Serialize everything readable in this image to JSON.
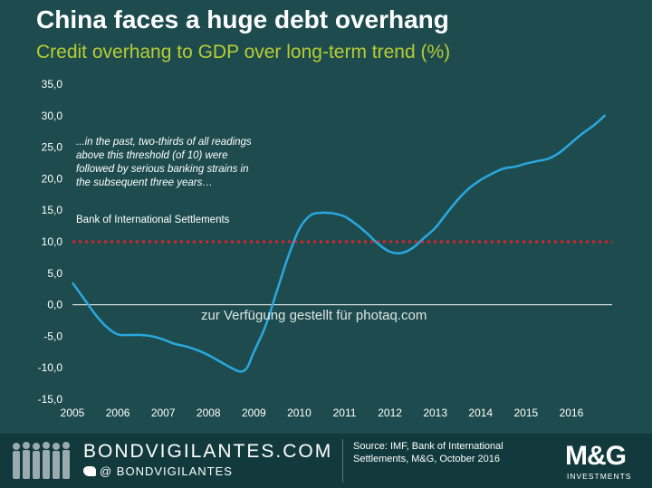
{
  "header": {
    "title": "China faces a huge debt overhang",
    "subtitle": "Credit overhang to GDP over long-term trend (%)"
  },
  "annotation": {
    "quote": "...in the past, two-thirds of all readings above this threshold (of 10) were followed by serious banking strains in the subsequent three years…",
    "attribution": "Bank of International Settlements"
  },
  "watermark": "zur Verfügung gestellt für photaq.com",
  "footer": {
    "brand": "BONDVIGILANTES.COM",
    "twitter": "@ BONDVIGILANTES",
    "source": "Source: IMF, Bank of International Settlements, M&G, October 2016",
    "logo_main": "M&G",
    "logo_sub": "INVESTMENTS"
  },
  "colors": {
    "background": "#1e4c4e",
    "subtitle": "#b7cc33",
    "line": "#29a8e0",
    "threshold": "#e0202a",
    "footer": "#123a3c"
  },
  "chart_data": {
    "type": "line",
    "title": "China faces a huge debt overhang",
    "subtitle": "Credit overhang to GDP over long-term trend (%)",
    "xlabel": "",
    "ylabel": "",
    "ylim": [
      -15,
      35
    ],
    "xlim": [
      2005,
      2016.9
    ],
    "yticks": [
      "35,0",
      "30,0",
      "25,0",
      "20,0",
      "15,0",
      "10,0",
      "5,0",
      "0,0",
      "-5,0",
      "-10,0",
      "-15,0"
    ],
    "xticks": [
      "2005",
      "2006",
      "2007",
      "2008",
      "2009",
      "2010",
      "2011",
      "2012",
      "2013",
      "2014",
      "2015",
      "2016"
    ],
    "grid": false,
    "threshold": 10,
    "series": [
      {
        "x": [
          2005.0,
          2005.25,
          2005.5,
          2005.75,
          2006.0,
          2006.25,
          2006.5,
          2006.75,
          2007.0,
          2007.25,
          2007.5,
          2007.75,
          2008.0,
          2008.25,
          2008.5,
          2008.7,
          2008.85,
          2009.0,
          2009.25,
          2009.5,
          2009.75,
          2010.0,
          2010.25,
          2010.5,
          2010.75,
          2011.0,
          2011.25,
          2011.5,
          2011.75,
          2012.0,
          2012.25,
          2012.5,
          2012.75,
          2013.0,
          2013.25,
          2013.5,
          2013.75,
          2014.0,
          2014.25,
          2014.5,
          2014.75,
          2015.0,
          2015.25,
          2015.5,
          2015.75,
          2016.0,
          2016.25,
          2016.5,
          2016.75
        ],
        "values": [
          3.5,
          1.0,
          -1.5,
          -3.5,
          -4.7,
          -4.8,
          -4.8,
          -5.0,
          -5.5,
          -6.2,
          -6.6,
          -7.2,
          -8.0,
          -9.0,
          -10.0,
          -10.6,
          -10.0,
          -7.5,
          -3.5,
          2.0,
          7.5,
          12.0,
          14.2,
          14.6,
          14.5,
          14.0,
          12.8,
          11.3,
          9.6,
          8.4,
          8.2,
          9.0,
          10.6,
          12.2,
          14.5,
          16.7,
          18.5,
          19.8,
          20.8,
          21.6,
          21.9,
          22.4,
          22.8,
          23.2,
          24.2,
          25.7,
          27.2,
          28.5,
          30.1
        ]
      }
    ]
  }
}
